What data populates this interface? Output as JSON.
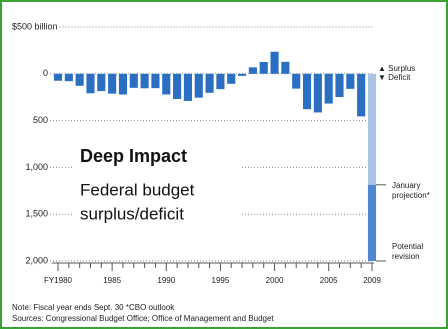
{
  "chart_data": {
    "type": "bar",
    "title": "Deep Impact",
    "subtitle": [
      "Federal budget",
      "surplus/deficit"
    ],
    "annotations": {
      "surplus": "▲ Surplus",
      "deficit": "▼ Deficit"
    },
    "categories": [
      "FY1980",
      null,
      null,
      null,
      null,
      "1985",
      null,
      null,
      null,
      null,
      "1990",
      null,
      null,
      null,
      null,
      "1995",
      null,
      null,
      null,
      null,
      "2000",
      null,
      null,
      null,
      null,
      "2005",
      null,
      null,
      null,
      "2009"
    ],
    "values": [
      -74,
      -79,
      -128,
      -208,
      -185,
      -212,
      -221,
      -150,
      -155,
      -153,
      -221,
      -269,
      -290,
      -255,
      -203,
      -164,
      -107,
      -22,
      69,
      126,
      236,
      128,
      -158,
      -378,
      -413,
      -318,
      -248,
      -161,
      -455,
      null
    ],
    "color": "#2b6fc2",
    "projection": {
      "name": "January projection*",
      "value": -1186,
      "color": "#a9c3e6"
    },
    "revision": {
      "name": "Potential revision",
      "value": -814,
      "color": "#4f88cf"
    },
    "ylim": [
      -2000,
      500
    ],
    "yticks": [
      {
        "value": 500,
        "label": "$500 billion"
      },
      0,
      {
        "value": -500,
        "label": "500"
      },
      {
        "value": -1000,
        "label": "1,000"
      },
      {
        "value": -1500,
        "label": "1,500"
      },
      {
        "value": -2000,
        "label": "2,000"
      }
    ],
    "grid": true,
    "notes": [
      "Note: Fiscal year ends Sept. 30   *CBO outlook",
      "Sources: Congressional Budget Office; Office of Management and Budget"
    ]
  }
}
